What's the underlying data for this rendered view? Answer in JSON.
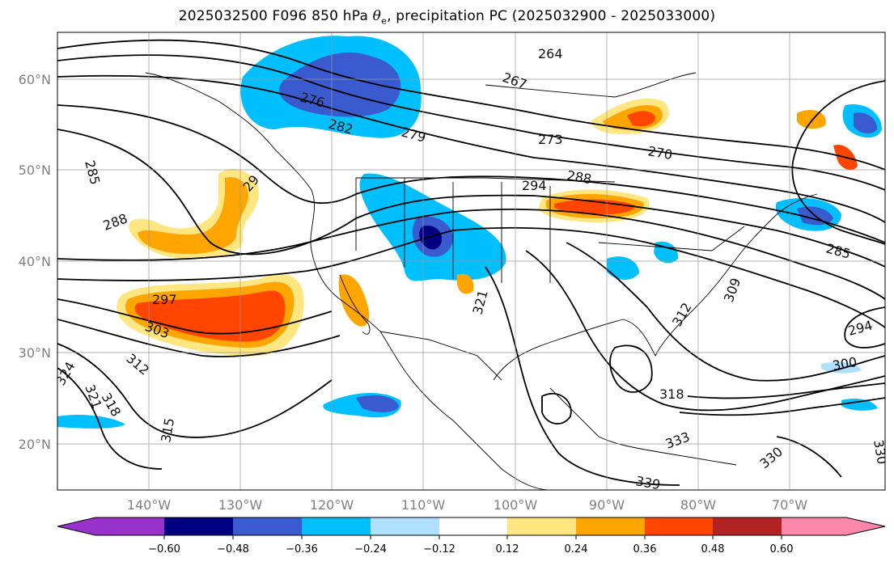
{
  "title": {
    "prefix": "2025032500 F096 850 hPa ",
    "symbol": "θ",
    "subscript": "e",
    "suffix": ", precipitation PC (2025032900 - 2025033000)"
  },
  "map": {
    "lat_labels": [
      "60°N",
      "50°N",
      "40°N",
      "30°N",
      "20°N"
    ],
    "lon_labels": [
      "140°W",
      "130°W",
      "120°W",
      "110°W",
      "100°W",
      "90°W",
      "80°W",
      "70°W"
    ],
    "contour_labels": [
      "264",
      "267",
      "270",
      "273",
      "276",
      "279",
      "282",
      "285",
      "288",
      "29",
      "294",
      "297",
      "300",
      "303",
      "309",
      "312",
      "315",
      "318",
      "321",
      "324",
      "330",
      "333",
      "339",
      "285",
      "288",
      "294",
      "312",
      "318",
      "321",
      "330"
    ]
  },
  "colorbar": {
    "tick_labels": [
      "−0.60",
      "−0.48",
      "−0.36",
      "−0.24",
      "−0.12",
      "0.12",
      "0.24",
      "0.36",
      "0.48",
      "0.60"
    ],
    "colors": [
      "#9932CC",
      "#000080",
      "#3A5BCF",
      "#00BFFF",
      "#B0E0FF",
      "#FFFFFF",
      "#FFE680",
      "#FFA500",
      "#FF4500",
      "#B22222",
      "#FF88AA"
    ]
  }
}
